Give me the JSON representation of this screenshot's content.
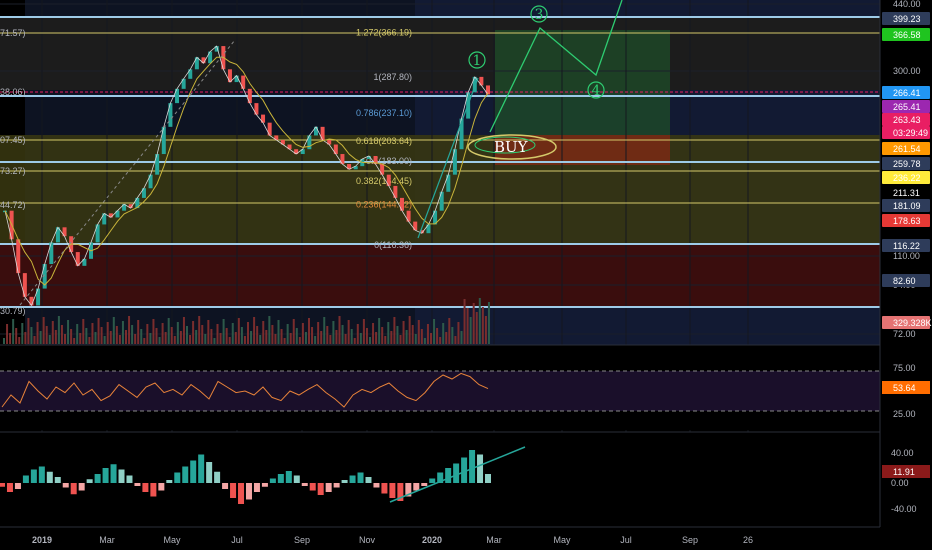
{
  "chart_data": [
    {
      "type": "line",
      "scale": "log",
      "y_ticks": [
        "440.00",
        "300.00",
        "110.00",
        "94.00",
        "72.00"
      ],
      "x_ticks": [
        "2019",
        "Mar",
        "May",
        "Jul",
        "Sep",
        "Nov",
        "2020",
        "Mar",
        "May",
        "Jul",
        "Sep",
        "26"
      ],
      "left_labels": [
        "71.57)",
        "38.06)",
        "07.45)",
        "73.27)",
        "44.72)",
        "30.79)"
      ],
      "fib_levels": [
        {
          "label": "1.272(366.19)",
          "value": 366.19,
          "color": "#d4c96a"
        },
        {
          "label": "1(287.80)",
          "value": 287.8,
          "color": "#b2b5be"
        },
        {
          "label": "0.786(237.10)",
          "value": 237.1,
          "color": "#5b9bd5"
        },
        {
          "label": "0.618(203.64)",
          "value": 203.64,
          "color": "#d4c96a"
        },
        {
          "label": "0.5(183.00)",
          "value": 183.0,
          "color": "#b2b5be"
        },
        {
          "label": "0.382(164.45)",
          "value": 164.45,
          "color": "#d4c96a"
        },
        {
          "label": "0.236(144.92)",
          "value": 144.92,
          "color": "#e08a3c"
        },
        {
          "label": "0(116.36)",
          "value": 116.36,
          "color": "#b2b5be"
        }
      ],
      "price_tags": [
        {
          "label": "399.23",
          "color": "#2e3c5a",
          "text": "#ffffff"
        },
        {
          "label": "366.58",
          "color": "#1fc41f",
          "text": "#000000"
        },
        {
          "label": "266.41",
          "color": "#2196f3",
          "text": "#ffffff"
        },
        {
          "label": "265.41",
          "color": "#9c27b0",
          "text": "#ffffff"
        },
        {
          "label": "263.43",
          "color": "#e91e63",
          "text": "#ffffff"
        },
        {
          "label": "03:29:49",
          "color": "#e91e63",
          "text": "#ffffff"
        },
        {
          "label": "261.54",
          "color": "#ff9800",
          "text": "#000000"
        },
        {
          "label": "259.78",
          "color": "#2e3c5a",
          "text": "#ffffff"
        },
        {
          "label": "236.22",
          "color": "#ffeb3b",
          "text": "#000000"
        },
        {
          "label": "211.31",
          "color": "#000000",
          "text": "#ffffff"
        },
        {
          "label": "181.09",
          "color": "#2e3c5a",
          "text": "#ffffff"
        },
        {
          "label": "178.63",
          "color": "#e53935",
          "text": "#ffffff"
        },
        {
          "label": "116.22",
          "color": "#2e3c5a",
          "text": "#ffffff"
        },
        {
          "label": "82.60",
          "color": "#2e3c5a",
          "text": "#ffffff"
        },
        {
          "label": "329.328K",
          "color": "#e57373",
          "text": "#ffffff"
        }
      ],
      "annotations": [
        "1",
        "3",
        "4",
        "BUY"
      ],
      "series": [
        {
          "values": [
            140,
            120,
            100,
            88,
            84,
            92,
            105,
            118,
            128,
            122,
            112,
            104,
            108,
            118,
            130,
            138,
            135,
            140,
            145,
            142,
            150,
            158,
            170,
            190,
            220,
            250,
            270,
            285,
            300,
            320,
            310,
            330,
            340,
            300,
            280,
            290,
            270,
            250,
            235,
            225,
            210,
            205,
            200,
            195,
            190,
            195,
            210,
            220,
            205,
            200,
            190,
            180,
            175,
            178,
            185,
            188,
            180,
            170,
            160,
            150,
            140,
            132,
            126,
            124,
            130,
            140,
            155,
            170,
            195,
            230,
            265,
            288,
            275,
            262
          ]
        }
      ]
    },
    {
      "type": "line",
      "title": "",
      "y_ticks": [
        "75.00",
        "25.00"
      ],
      "last_value": "53.64",
      "series": [
        {
          "values": [
            30,
            45,
            35,
            62,
            50,
            40,
            55,
            48,
            60,
            45,
            52,
            38,
            44,
            58,
            50,
            42,
            55,
            60,
            48,
            52,
            45,
            58,
            50,
            40,
            62,
            55,
            48,
            50,
            45,
            55,
            42,
            38,
            50,
            45,
            52,
            58,
            48,
            40,
            30,
            45,
            52,
            48,
            55,
            60,
            50,
            42,
            38,
            48,
            62,
            70,
            65,
            72,
            68,
            58,
            53
          ]
        }
      ]
    },
    {
      "type": "bar",
      "y_ticks": [
        "40.00",
        "0.00",
        "-40.00"
      ],
      "last_value": "11.91",
      "values": [
        -5,
        -12,
        -8,
        10,
        18,
        22,
        15,
        8,
        -6,
        -15,
        -10,
        5,
        12,
        20,
        25,
        18,
        10,
        -4,
        -12,
        -18,
        -10,
        4,
        14,
        22,
        30,
        38,
        28,
        15,
        -8,
        -20,
        -28,
        -22,
        -12,
        -5,
        6,
        12,
        16,
        10,
        -4,
        -10,
        -16,
        -12,
        -6,
        4,
        10,
        14,
        8,
        -6,
        -14,
        -20,
        -24,
        -18,
        -10,
        -4,
        6,
        14,
        20,
        26,
        34,
        44,
        38,
        12
      ]
    }
  ]
}
